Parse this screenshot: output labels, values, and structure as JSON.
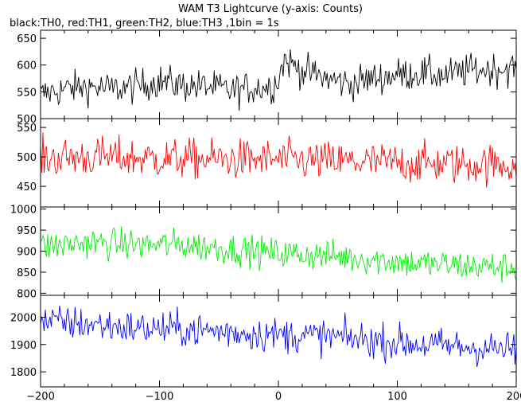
{
  "chart_data": {
    "type": "line",
    "title": "WAM T3 Lightcurve (y-axis: Counts)",
    "subtitle": "black:TH0, red:TH1, green:TH2, blue:TH3 ,1bin = 1s",
    "x_range": [
      -200,
      200
    ],
    "x_ticks": [
      -200,
      -100,
      0,
      100,
      200
    ],
    "grid": false,
    "panels": [
      {
        "name": "TH0",
        "color": "#000000",
        "ylim": [
          500,
          665
        ],
        "y_ticks": [
          500,
          550,
          600,
          650
        ],
        "x": [
          -200,
          -180,
          -160,
          -140,
          -120,
          -100,
          -80,
          -60,
          -40,
          -20,
          -5,
          0,
          5,
          20,
          40,
          60,
          80,
          100,
          120,
          140,
          160,
          180,
          200
        ],
        "y": [
          545,
          555,
          560,
          555,
          560,
          570,
          562,
          560,
          552,
          558,
          560,
          575,
          610,
          590,
          575,
          565,
          575,
          582,
          585,
          580,
          590,
          592,
          595
        ],
        "noise": 22
      },
      {
        "name": "TH1",
        "color": "#ff0000",
        "ylim": [
          415,
          565
        ],
        "y_ticks": [
          450,
          500,
          550
        ],
        "x": [
          -200,
          -150,
          -100,
          -50,
          0,
          50,
          100,
          150,
          200
        ],
        "y": [
          498,
          500,
          497,
          496,
          495,
          492,
          490,
          488,
          487
        ],
        "noise": 24
      },
      {
        "name": "TH2",
        "color": "#00ee00",
        "ylim": [
          795,
          1005
        ],
        "y_ticks": [
          800,
          850,
          900,
          950,
          1000
        ],
        "x": [
          -200,
          -160,
          -120,
          -80,
          -40,
          0,
          40,
          80,
          120,
          160,
          200
        ],
        "y": [
          910,
          920,
          915,
          915,
          905,
          895,
          890,
          880,
          870,
          865,
          860
        ],
        "noise": 26
      },
      {
        "name": "TH3",
        "color": "#0000ff",
        "ylim": [
          1745,
          2080
        ],
        "y_ticks": [
          1800,
          1900,
          2000
        ],
        "x": [
          -200,
          -160,
          -120,
          -80,
          -40,
          0,
          40,
          80,
          120,
          160,
          200
        ],
        "y": [
          1985,
          1975,
          1960,
          1955,
          1945,
          1935,
          1930,
          1915,
          1900,
          1890,
          1880
        ],
        "noise": 45
      }
    ]
  }
}
